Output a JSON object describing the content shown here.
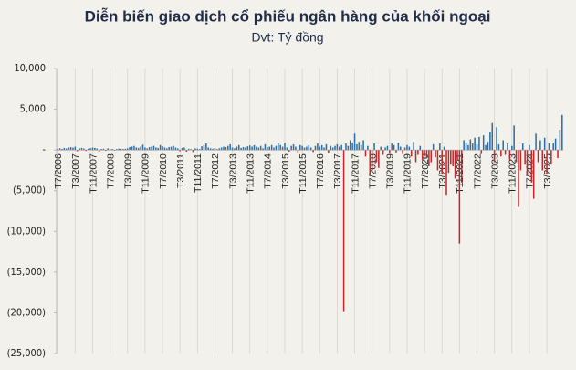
{
  "chart_data": {
    "type": "bar",
    "title": "Diễn biến giao dịch cổ phiếu ngân hàng của khối ngoại",
    "subtitle": "Đvt: Tỷ đồng",
    "categories": [
      "T7/2006",
      null,
      null,
      null,
      null,
      null,
      null,
      null,
      "T3/2007",
      null,
      null,
      null,
      null,
      null,
      null,
      null,
      "T11/2007",
      null,
      null,
      null,
      null,
      null,
      null,
      null,
      "T7/2008",
      null,
      null,
      null,
      null,
      null,
      null,
      null,
      "T3/2009",
      null,
      null,
      null,
      null,
      null,
      null,
      null,
      "T11/2009",
      null,
      null,
      null,
      null,
      null,
      null,
      null,
      "T7/2010",
      null,
      null,
      null,
      null,
      null,
      null,
      null,
      "T3/2011",
      null,
      null,
      null,
      null,
      null,
      null,
      null,
      "T11/2011",
      null,
      null,
      null,
      null,
      null,
      null,
      null,
      "T7/2012",
      null,
      null,
      null,
      null,
      null,
      null,
      null,
      "T3/2013",
      null,
      null,
      null,
      null,
      null,
      null,
      null,
      "T11/2013",
      null,
      null,
      null,
      null,
      null,
      null,
      null,
      "T7/2014",
      null,
      null,
      null,
      null,
      null,
      null,
      null,
      "T3/2015",
      null,
      null,
      null,
      null,
      null,
      null,
      null,
      "T11/2015",
      null,
      null,
      null,
      null,
      null,
      null,
      null,
      "T7/2016",
      null,
      null,
      null,
      null,
      null,
      null,
      null,
      "T3/2017",
      null,
      null,
      null,
      null,
      null,
      null,
      null,
      "T11/2017",
      null,
      null,
      null,
      null,
      null,
      null,
      null,
      "T7/2018",
      null,
      null,
      null,
      null,
      null,
      null,
      null,
      "T3/2019",
      null,
      null,
      null,
      null,
      null,
      null,
      null,
      "T11/2019",
      null,
      null,
      null,
      null,
      null,
      null,
      null,
      "T7/2020",
      null,
      null,
      null,
      null,
      null,
      null,
      null,
      "T3/2021",
      null,
      null,
      null,
      null,
      null,
      null,
      null,
      "T11/2021",
      null,
      null,
      null,
      null,
      null,
      null,
      null,
      "T7/2022",
      null,
      null,
      null,
      null,
      null,
      null,
      null,
      "T3/2023",
      null,
      null,
      null,
      null,
      null,
      null,
      null,
      "T11/2023",
      null,
      null,
      null,
      null,
      null,
      null,
      null,
      "T7/2024",
      null,
      null,
      null,
      null,
      null,
      null,
      null,
      "T3/2025",
      null,
      null,
      null,
      null,
      null,
      null,
      null
    ],
    "values": [
      150,
      200,
      120,
      250,
      180,
      300,
      350,
      280,
      400,
      -150,
      200,
      260,
      180,
      -120,
      150,
      220,
      300,
      250,
      180,
      -200,
      120,
      150,
      -100,
      200,
      90,
      130,
      -80,
      110,
      160,
      140,
      120,
      150,
      200,
      350,
      420,
      500,
      300,
      250,
      400,
      650,
      300,
      200,
      350,
      400,
      500,
      300,
      250,
      600,
      450,
      300,
      200,
      350,
      400,
      500,
      300,
      200,
      -150,
      250,
      300,
      -200,
      150,
      100,
      -250,
      200,
      150,
      100,
      450,
      600,
      800,
      300,
      200,
      150,
      250,
      100,
      200,
      300,
      400,
      350,
      500,
      700,
      300,
      200,
      400,
      600,
      250,
      350,
      300,
      450,
      550,
      400,
      600,
      400,
      300,
      500,
      200,
      700,
      350,
      400,
      600,
      300,
      500,
      800,
      600,
      400,
      900,
      300,
      -200,
      500,
      700,
      400,
      -300,
      600,
      500,
      300,
      400,
      600,
      300,
      -250,
      500,
      800,
      400,
      600,
      300,
      700,
      -400,
      500,
      300,
      500,
      700,
      400,
      600,
      -19800,
      800,
      500,
      1200,
      900,
      2000,
      700,
      1000,
      600,
      1200,
      -800,
      500,
      -3100,
      -2500,
      800,
      -1500,
      -2200,
      400,
      -600,
      300,
      500,
      -400,
      800,
      600,
      -300,
      900,
      400,
      -500,
      300,
      600,
      400,
      -800,
      1000,
      -1500,
      -600,
      500,
      -1200,
      -800,
      -1000,
      -2000,
      -1500,
      700,
      -900,
      -2500,
      800,
      -3000,
      400,
      -5500,
      -2800,
      -1800,
      -2000,
      -3500,
      -1200,
      -11500,
      -4000,
      1200,
      900,
      600,
      1300,
      800,
      1500,
      700,
      1600,
      -500,
      1800,
      600,
      1000,
      2200,
      3300,
      -1500,
      2800,
      700,
      -800,
      1200,
      -600,
      800,
      -1200,
      500,
      3000,
      -1500,
      -7000,
      -2500,
      800,
      -1800,
      -3200,
      600,
      -4000,
      -6000,
      2000,
      -1500,
      1200,
      -2500,
      1500,
      -3000,
      900,
      -1800,
      800,
      1400,
      -1000,
      2500,
      4300
    ],
    "positive_color": "#2f6ea5",
    "negative_color": "#c1272d",
    "ylim": [
      -25000,
      10000
    ],
    "yticks": [
      {
        "value": -25000,
        "label": "(25,000)"
      },
      {
        "value": -20000,
        "label": "(20,000)"
      },
      {
        "value": -15000,
        "label": "(15,000)"
      },
      {
        "value": -10000,
        "label": "(10,000)"
      },
      {
        "value": -5000,
        "label": "(5,000)"
      },
      {
        "value": 0,
        "label": "-"
      },
      {
        "value": 5000,
        "label": "5,000"
      },
      {
        "value": 10000,
        "label": "10,000"
      }
    ],
    "grid": true
  }
}
